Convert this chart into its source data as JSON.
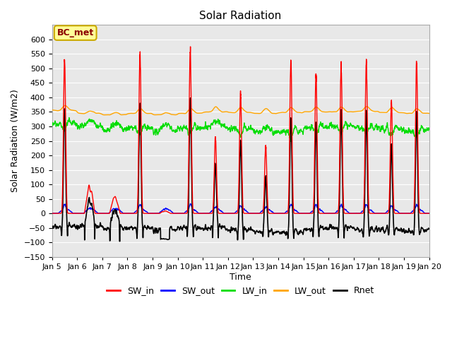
{
  "title": "Solar Radiation",
  "xlabel": "Time",
  "ylabel": "Solar Radiation (W/m2)",
  "ylim": [
    -150,
    650
  ],
  "yticks": [
    -150,
    -100,
    -50,
    0,
    50,
    100,
    150,
    200,
    250,
    300,
    350,
    400,
    450,
    500,
    550,
    600
  ],
  "n_days": 15,
  "legend_labels": [
    "SW_in",
    "SW_out",
    "LW_in",
    "LW_out",
    "Rnet"
  ],
  "legend_colors": [
    "red",
    "blue",
    "green",
    "orange",
    "black"
  ],
  "annotation_text": "BC_met",
  "annotation_color": "#8B0000",
  "annotation_bg": "#FFFF99",
  "line_width": 1.0,
  "sw_peaks": [
    530,
    100,
    65,
    550,
    10,
    560,
    260,
    410,
    230,
    530,
    475,
    510,
    520,
    385,
    520
  ],
  "lw_out_base": [
    355,
    345,
    340,
    345,
    340,
    345,
    350,
    348,
    345,
    348,
    350,
    350,
    352,
    348,
    345
  ],
  "lw_in_base": [
    310,
    300,
    290,
    295,
    285,
    295,
    300,
    290,
    280,
    285,
    295,
    300,
    295,
    290,
    285
  ],
  "night_rnet": [
    -75,
    -90,
    -95,
    -85,
    -90,
    -80,
    -85,
    -90,
    -80,
    -85,
    -80,
    -85,
    -80,
    -75,
    -75
  ]
}
